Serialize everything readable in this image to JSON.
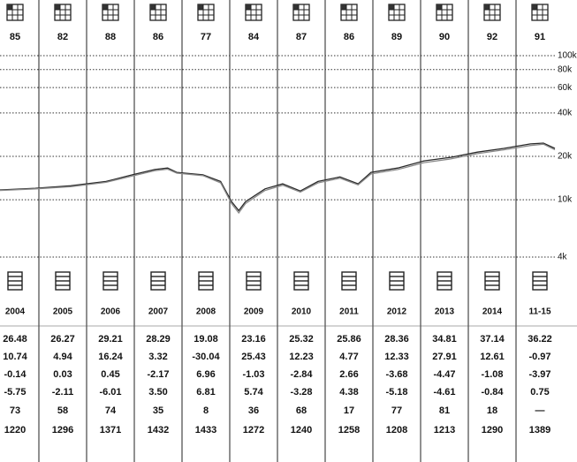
{
  "style_box_scores": [
    "85",
    "82",
    "88",
    "86",
    "77",
    "84",
    "87",
    "86",
    "89",
    "90",
    "92",
    "91"
  ],
  "chart_data": {
    "type": "line",
    "log_scale": true,
    "grid": true,
    "xlim": [
      2004.19,
      2015.81
    ],
    "ylim": [
      4000,
      100000
    ],
    "yticks": [
      {
        "value": 100000,
        "label": "100k"
      },
      {
        "value": 80000,
        "label": "80k"
      },
      {
        "value": 60000,
        "label": "60k"
      },
      {
        "value": 40000,
        "label": "40k"
      },
      {
        "value": 20000,
        "label": "20k"
      },
      {
        "value": 10000,
        "label": "10k"
      },
      {
        "value": 4000,
        "label": "4k"
      }
    ],
    "x": [
      2004.19,
      2004.93,
      2005.67,
      2006.41,
      2006.96,
      2007.43,
      2007.7,
      2007.89,
      2008.44,
      2008.81,
      2009.04,
      2009.19,
      2009.33,
      2009.74,
      2010.11,
      2010.48,
      2010.85,
      2011.31,
      2011.69,
      2011.96,
      2012.52,
      2013.07,
      2013.63,
      2014.19,
      2014.74,
      2015.3,
      2015.57,
      2015.81
    ],
    "series": [
      {
        "color": "#2a2a2a",
        "values": [
          11700,
          12000,
          12500,
          13400,
          14900,
          16200,
          16600,
          15500,
          14900,
          13400,
          9700,
          8400,
          9700,
          11900,
          12900,
          11500,
          13400,
          14400,
          12900,
          15500,
          16600,
          18600,
          19700,
          21400,
          22700,
          24400,
          24700,
          22700
        ]
      },
      {
        "color": "#8a8a8a",
        "values": [
          11600,
          11900,
          12300,
          13200,
          14600,
          15900,
          16300,
          15300,
          14700,
          13100,
          9400,
          8100,
          9400,
          11600,
          12600,
          11300,
          13100,
          14100,
          12700,
          15100,
          16200,
          18100,
          19200,
          20900,
          22200,
          23800,
          24300,
          22200
        ]
      }
    ]
  },
  "table": {
    "years": [
      "2004",
      "2005",
      "2006",
      "2007",
      "2008",
      "2009",
      "2010",
      "2011",
      "2012",
      "2013",
      "2014",
      "11-15"
    ],
    "rows": [
      [
        "26.48",
        "26.27",
        "29.21",
        "28.29",
        "19.08",
        "23.16",
        "25.32",
        "25.86",
        "28.36",
        "34.81",
        "37.14",
        "36.22"
      ],
      [
        "10.74",
        "4.94",
        "16.24",
        "3.32",
        "-30.04",
        "25.43",
        "12.23",
        "4.77",
        "12.33",
        "27.91",
        "12.61",
        "-0.97"
      ],
      [
        "-0.14",
        "0.03",
        "0.45",
        "-2.17",
        "6.96",
        "-1.03",
        "-2.84",
        "2.66",
        "-3.68",
        "-4.47",
        "-1.08",
        "-3.97"
      ],
      [
        "-5.75",
        "-2.11",
        "-6.01",
        "3.50",
        "6.81",
        "5.74",
        "-3.28",
        "4.38",
        "-5.18",
        "-4.61",
        "-0.84",
        "0.75"
      ],
      [
        "73",
        "58",
        "74",
        "35",
        "8",
        "36",
        "68",
        "17",
        "77",
        "81",
        "18",
        "—"
      ],
      [
        "1220",
        "1296",
        "1371",
        "1432",
        "1433",
        "1272",
        "1240",
        "1258",
        "1208",
        "1213",
        "1290",
        "1389"
      ]
    ]
  }
}
